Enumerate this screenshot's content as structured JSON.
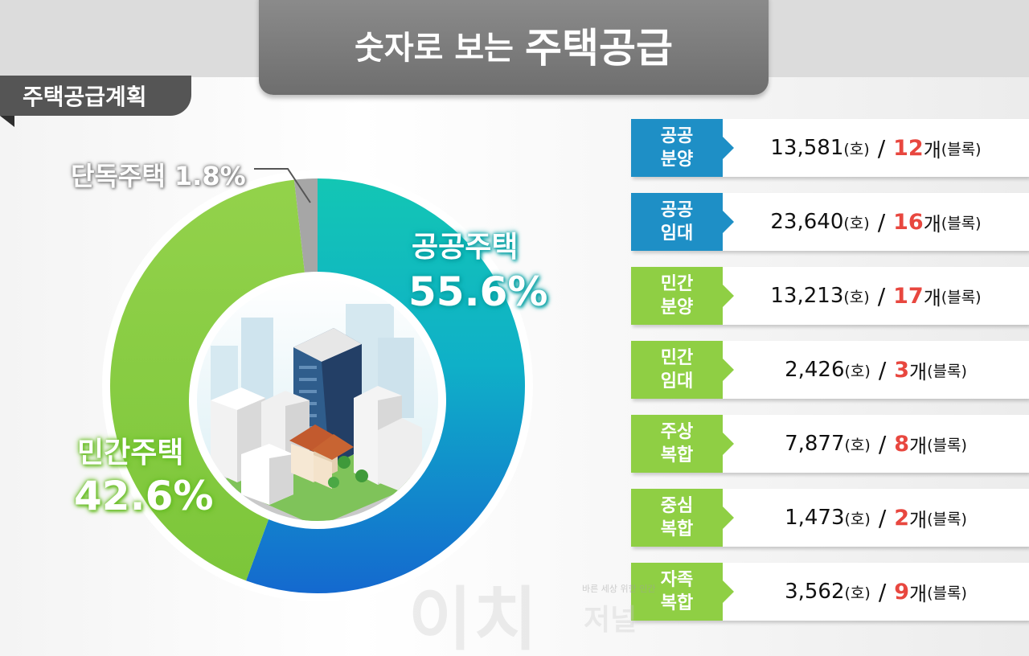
{
  "header": {
    "title_small": "숫자로 보는",
    "title_large": "주택공급"
  },
  "section_tab": "주택공급계획",
  "chart_data": {
    "type": "pie",
    "style": "donut",
    "slices": [
      {
        "label": "공공주택",
        "value_text": "55.6%",
        "value": 55.6,
        "color": "#1ab9c4"
      },
      {
        "label": "민간주택",
        "value_text": "42.6%",
        "value": 42.6,
        "color": "#8dce47"
      },
      {
        "label": "단독주택",
        "value_text": "1.8%",
        "value": 1.8,
        "color": "#a6a6a6"
      }
    ]
  },
  "stats": [
    {
      "tag": "공공\n분양",
      "color": "blue",
      "units": "13,581",
      "units_suffix": "(호)",
      "sep": "/",
      "blocks": "12",
      "blocks_unit": "개",
      "blocks_suffix": "(블록)"
    },
    {
      "tag": "공공\n임대",
      "color": "blue",
      "units": "23,640",
      "units_suffix": "(호)",
      "sep": "/",
      "blocks": "16",
      "blocks_unit": "개",
      "blocks_suffix": "(블록)"
    },
    {
      "tag": "민간\n분양",
      "color": "green",
      "units": "13,213",
      "units_suffix": "(호)",
      "sep": "/",
      "blocks": "17",
      "blocks_unit": "개",
      "blocks_suffix": "(블록)"
    },
    {
      "tag": "민간\n임대",
      "color": "green",
      "units": "2,426",
      "units_suffix": "(호)",
      "sep": "/",
      "blocks": "3",
      "blocks_unit": "개",
      "blocks_suffix": "(블록)"
    },
    {
      "tag": "주상\n복합",
      "color": "green",
      "units": "7,877",
      "units_suffix": "(호)",
      "sep": "/",
      "blocks": "8",
      "blocks_unit": "개",
      "blocks_suffix": "(블록)"
    },
    {
      "tag": "중심\n복합",
      "color": "green",
      "units": "1,473",
      "units_suffix": "(호)",
      "sep": "/",
      "blocks": "2",
      "blocks_unit": "개",
      "blocks_suffix": "(블록)"
    },
    {
      "tag": "자족\n복합",
      "color": "green",
      "units": "3,562",
      "units_suffix": "(호)",
      "sep": "/",
      "blocks": "9",
      "blocks_unit": "개",
      "blocks_suffix": "(블록)"
    }
  ],
  "watermark": {
    "main": "이치",
    "sub": "저널",
    "tag": "바른 세상 위한 인간"
  }
}
